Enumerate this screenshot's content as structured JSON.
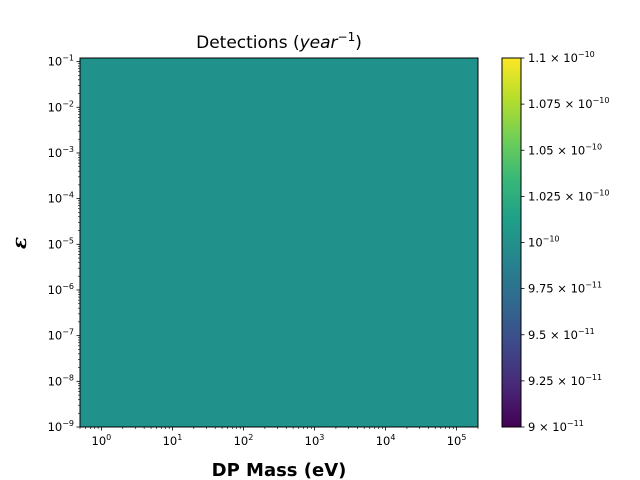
{
  "chart_data": {
    "type": "heatmap",
    "title": "Detections ($year^{-1}$)",
    "title_text": "Detections (",
    "title_math": "year",
    "title_exp": "−1",
    "title_close": ")",
    "xlabel": "DP Mass (eV)",
    "ylabel": "ε",
    "x_scale": "log",
    "y_scale": "log",
    "xlim": [
      0.5,
      200000
    ],
    "ylim": [
      1e-09,
      0.12
    ],
    "x_ticks": [
      {
        "value": 1,
        "base": "10",
        "exp": "0"
      },
      {
        "value": 10,
        "base": "10",
        "exp": "1"
      },
      {
        "value": 100,
        "base": "10",
        "exp": "2"
      },
      {
        "value": 1000,
        "base": "10",
        "exp": "3"
      },
      {
        "value": 10000,
        "base": "10",
        "exp": "4"
      },
      {
        "value": 100000,
        "base": "10",
        "exp": "5"
      }
    ],
    "y_ticks": [
      {
        "value": 1e-09,
        "base": "10",
        "exp": "−9"
      },
      {
        "value": 1e-08,
        "base": "10",
        "exp": "−8"
      },
      {
        "value": 1e-07,
        "base": "10",
        "exp": "−7"
      },
      {
        "value": 1e-06,
        "base": "10",
        "exp": "−6"
      },
      {
        "value": 1e-05,
        "base": "10",
        "exp": "−5"
      },
      {
        "value": 0.0001,
        "base": "10",
        "exp": "−4"
      },
      {
        "value": 0.001,
        "base": "10",
        "exp": "−3"
      },
      {
        "value": 0.01,
        "base": "10",
        "exp": "−2"
      },
      {
        "value": 0.1,
        "base": "10",
        "exp": "−1"
      }
    ],
    "grid": false,
    "value": 1e-10,
    "cell_color": "#21918c",
    "colormap": "viridis",
    "colorbar": {
      "range": [
        9e-11,
        1.1e-10
      ],
      "ticks": [
        {
          "value": 9e-11,
          "mant": "9",
          "times": " × ",
          "base": "10",
          "exp": "−11"
        },
        {
          "value": 9.25e-11,
          "mant": "9.25",
          "times": " × ",
          "base": "10",
          "exp": "−11"
        },
        {
          "value": 9.5e-11,
          "mant": "9.5",
          "times": " × ",
          "base": "10",
          "exp": "−11"
        },
        {
          "value": 9.75e-11,
          "mant": "9.75",
          "times": " × ",
          "base": "10",
          "exp": "−11"
        },
        {
          "value": 1e-10,
          "mant": "",
          "times": "",
          "base": "10",
          "exp": "−10"
        },
        {
          "value": 1.025e-10,
          "mant": "1.025",
          "times": " × ",
          "base": "10",
          "exp": "−10"
        },
        {
          "value": 1.05e-10,
          "mant": "1.05",
          "times": " × ",
          "base": "10",
          "exp": "−10"
        },
        {
          "value": 1.075e-10,
          "mant": "1.075",
          "times": " × ",
          "base": "10",
          "exp": "−10"
        },
        {
          "value": 1.1e-10,
          "mant": "1.1",
          "times": " × ",
          "base": "10",
          "exp": "−10"
        }
      ],
      "colors": [
        "#440154",
        "#482878",
        "#3e4989",
        "#31688e",
        "#26828e",
        "#1f9e89",
        "#35b779",
        "#6ece58",
        "#b5de2b",
        "#fde725"
      ]
    }
  }
}
